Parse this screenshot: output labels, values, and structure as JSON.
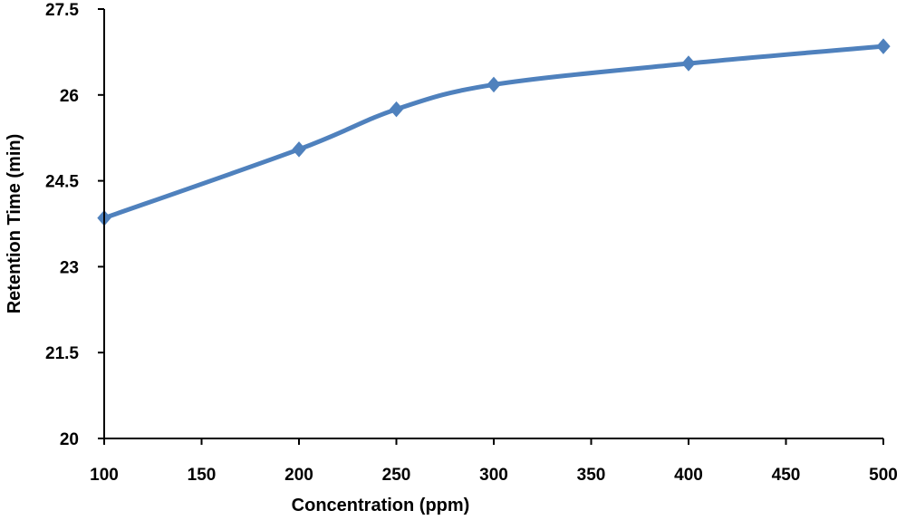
{
  "chart_data": {
    "type": "line",
    "title": "",
    "xlabel": "Concentration (ppm)",
    "ylabel": "Retention Time (min)",
    "xlim": [
      100,
      500
    ],
    "ylim": [
      20,
      27.5
    ],
    "xticks": [
      100,
      150,
      200,
      250,
      300,
      350,
      400,
      450,
      500
    ],
    "xtick_labels": [
      "100",
      "150",
      "200",
      "250",
      "300",
      "350",
      "400",
      "450",
      "500"
    ],
    "yticks": [
      20,
      21.5,
      23,
      24.5,
      26,
      27.5
    ],
    "ytick_labels": [
      "20",
      "21.5",
      "23",
      "24.5",
      "26",
      "27.5"
    ],
    "grid": false,
    "legend": false,
    "smooth": true,
    "marker": "diamond",
    "series": [
      {
        "color": "#4f81bd",
        "x": [
          100,
          200,
          250,
          300,
          400,
          500
        ],
        "y": [
          23.85,
          25.05,
          25.75,
          26.18,
          26.55,
          26.85
        ]
      }
    ]
  }
}
